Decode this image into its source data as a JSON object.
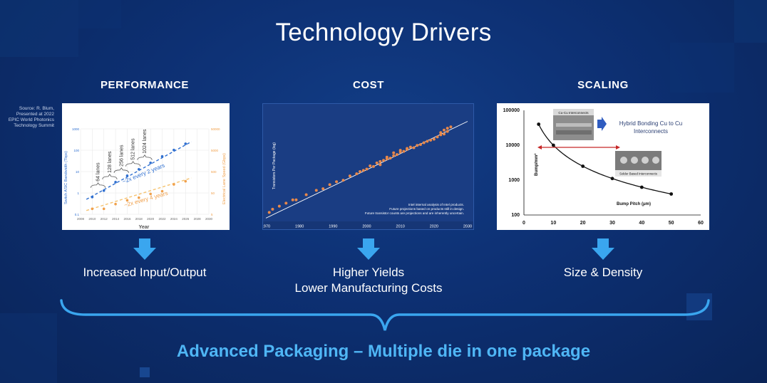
{
  "slide": {
    "title": "Technology Drivers",
    "footer": "Advanced Packaging – Multiple die in one package",
    "source_note": "Source: R. Blum, Presented at 2022 EPIC World Photonics Technology Summit"
  },
  "columns": [
    {
      "heading": "PERFORMANCE",
      "caption_lines": [
        "Increased Input/Output"
      ]
    },
    {
      "heading": "COST",
      "caption_lines": [
        "Higher Yields",
        "Lower Manufacturing Costs"
      ]
    },
    {
      "heading": "SCALING",
      "caption_lines": [
        "Size & Density"
      ]
    }
  ],
  "colors": {
    "accent": "#4fb6f5",
    "arrow": "#3aa6ef",
    "blue_series": "#2f6fd0",
    "orange_series": "#f0a04b",
    "cost_point": "#e8884a"
  },
  "chart_data": [
    {
      "type": "scatter",
      "xlabel": "Year",
      "ylabel": "Switch ASIC Bandwidth (Tbps)",
      "ylabel_right": "Electrical Lane Speed (Gbps)",
      "xlim": [
        2008,
        2030
      ],
      "x_ticks": [
        "2008",
        "2010",
        "2012",
        "2014",
        "2016",
        "2018",
        "2020",
        "2022",
        "2024",
        "2026",
        "2028",
        "2030"
      ],
      "y_ticks_left": [
        "0.1",
        "1",
        "10",
        "100",
        "1000"
      ],
      "y_ticks_right": [
        "5",
        "50",
        "500",
        "5000",
        "50000"
      ],
      "y_scale": "log",
      "ylim": [
        0.1,
        1000
      ],
      "series": [
        {
          "name": "Switch ASIC Bandwidth",
          "x": [
            2010,
            2012,
            2014,
            2016,
            2018,
            2020,
            2022,
            2024,
            2026
          ],
          "y": [
            0.64,
            1.28,
            3.2,
            6.4,
            12.8,
            25.6,
            51.2,
            102.4,
            200
          ]
        },
        {
          "name": "Electrical Lane Speed",
          "x": [
            2010,
            2012,
            2014,
            2016,
            2018,
            2020,
            2022,
            2024,
            2026
          ],
          "y": [
            0.18,
            0.18,
            0.3,
            0.45,
            0.6,
            0.9,
            1.2,
            2.5,
            3.5
          ]
        }
      ],
      "annotations": {
        "lanes": [
          "64 lanes",
          "128 lanes",
          "256 lanes",
          "512 lanes",
          "1024 lanes"
        ],
        "blue_trend": "~2x every 2 years",
        "orange_trend": "~2x every 4 years"
      }
    },
    {
      "type": "scatter",
      "ylabel": "Transistors Per Package (log)",
      "x_ticks": [
        "1970",
        "1980",
        "1990",
        "2000",
        "2010",
        "2020",
        "2030"
      ],
      "xlim": [
        1970,
        2030
      ],
      "y_scale": "log",
      "notes": [
        "Intel internal analysis of Intel products.",
        "Future projections based on products still in design.",
        "Future transistor counts are projections and are inherently uncertain."
      ],
      "x": [
        1971,
        1972,
        1974,
        1976,
        1978,
        1979,
        1982,
        1985,
        1987,
        1989,
        1991,
        1993,
        1995,
        1997,
        1998,
        1999,
        2000,
        2001,
        2002,
        2003,
        2004,
        2004,
        2005,
        2006,
        2006,
        2007,
        2008,
        2008,
        2009,
        2010,
        2010,
        2011,
        2012,
        2012,
        2013,
        2014,
        2015,
        2016,
        2017,
        2018,
        2019,
        2020,
        2021,
        2022,
        2022,
        2023,
        2023,
        2024,
        2024,
        2025
      ],
      "y": [
        0.03,
        0.05,
        0.08,
        0.13,
        0.22,
        0.22,
        0.5,
        1,
        1.3,
        2.5,
        4,
        5,
        10,
        14,
        20,
        24,
        30,
        50,
        45,
        80,
        100,
        60,
        120,
        150,
        200,
        170,
        250,
        400,
        300,
        450,
        600,
        500,
        800,
        700,
        1000,
        900,
        1300,
        1500,
        2000,
        2500,
        3000,
        3500,
        5000,
        7000,
        10000,
        8000,
        15000,
        12000,
        20000,
        25000
      ],
      "trend": {
        "x": [
          1970,
          2030
        ],
        "y": [
          0.012,
          60000
        ]
      }
    },
    {
      "type": "line",
      "xlabel": "Bump Pitch (μm)",
      "ylabel": "Bump/mm²",
      "x_ticks": [
        "0",
        "10",
        "20",
        "30",
        "40",
        "50",
        "60"
      ],
      "y_ticks": [
        "100",
        "1000",
        "10000",
        "100000"
      ],
      "xlim": [
        0,
        60
      ],
      "ylim": [
        100,
        100000
      ],
      "y_scale": "log",
      "series": [
        {
          "x": [
            5,
            10,
            20,
            30,
            40,
            50
          ],
          "y": [
            40000,
            10000,
            2500,
            1111,
            625,
            400
          ]
        }
      ],
      "annotations": {
        "cu_cu_label": "Cu-Cu Interconnects",
        "hybrid_label_lines": [
          "Hybrid Bonding Cu to Cu",
          "Interconnects"
        ],
        "solder_label": "Solder Based Interconnects"
      }
    }
  ]
}
